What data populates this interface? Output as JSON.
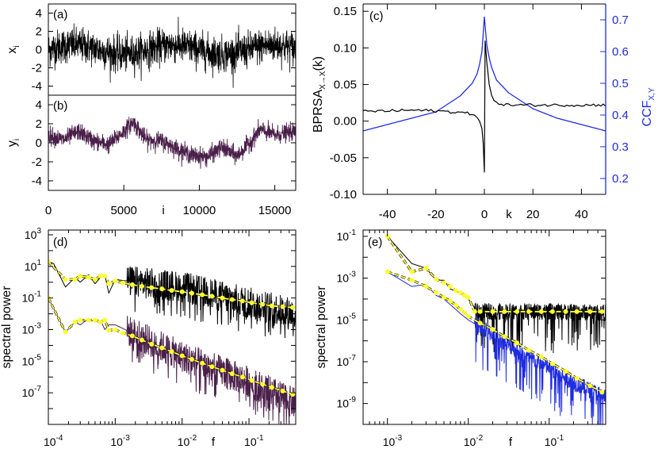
{
  "chart_data": [
    {
      "panel": "a",
      "type": "line",
      "panel_label": "(a)",
      "ylabel": "x",
      "ylabel_sub": "i",
      "xlim": [
        0,
        16384
      ],
      "ylim": [
        -5,
        5
      ],
      "yticks": [
        "4",
        "2",
        "0",
        "-2",
        "-4"
      ],
      "ytick_values": [
        4,
        2,
        0,
        -2,
        -4
      ],
      "series": [
        {
          "color": "#000000",
          "description_values": {
            "mean": 0.0,
            "std": 1.0,
            "min": -4.0,
            "max": 4.0
          }
        }
      ]
    },
    {
      "panel": "b",
      "type": "line",
      "panel_label": "(b)",
      "ylabel": "y",
      "ylabel_sub": "i",
      "xlabel": "i",
      "xlim": [
        0,
        16384
      ],
      "ylim": [
        -5,
        5
      ],
      "xticks": [
        "0",
        "5000",
        "10000",
        "15000"
      ],
      "xtick_values": [
        0,
        5000,
        10000,
        15000
      ],
      "yticks": [
        "4",
        "2",
        "0",
        "-2",
        "-4"
      ],
      "ytick_values": [
        4,
        2,
        0,
        -2,
        -4
      ],
      "series": [
        {
          "color": "#4a1f4a",
          "x": [
            0,
            1000,
            2000,
            3000,
            4000,
            5000,
            5600,
            6500,
            7500,
            8500,
            9500,
            10500,
            11500,
            12500,
            13500,
            14000,
            15000,
            16384
          ],
          "y": [
            0.8,
            0.3,
            1.2,
            0.2,
            -0.2,
            1.2,
            2.2,
            0.3,
            0.2,
            -0.6,
            -1.3,
            -1.5,
            -0.5,
            -1.4,
            0.3,
            1.4,
            0.8,
            1.2
          ]
        }
      ]
    },
    {
      "panel": "c",
      "type": "line",
      "panel_label": "(c)",
      "xlabel": "k",
      "ylabel_left": "BPRSA",
      "ylabel_left_sub": "X→X",
      "ylabel_left_suffix": "(k)",
      "ylabel_right": "CCF",
      "ylabel_right_sub": "X,Y",
      "xlim": [
        -50,
        50
      ],
      "ylim_left": [
        -0.1,
        0.16
      ],
      "ylim_right": [
        0.15,
        0.75
      ],
      "xticks": [
        "-40",
        "-20",
        "0",
        "20",
        "40"
      ],
      "xtick_values": [
        -40,
        -20,
        0,
        20,
        40
      ],
      "yticks_left": [
        "0.15",
        "0.10",
        "0.05",
        "0.00",
        "-0.05",
        "-0.10"
      ],
      "ytick_left_values": [
        0.15,
        0.1,
        0.05,
        0.0,
        -0.05,
        -0.1
      ],
      "yticks_right": [
        "0.7",
        "0.6",
        "0.5",
        "0.4",
        "0.3",
        "0.2"
      ],
      "ytick_right_values": [
        0.7,
        0.6,
        0.5,
        0.4,
        0.3,
        0.2
      ],
      "series": [
        {
          "axis": "left",
          "color": "#000000",
          "x": [
            -50,
            -40,
            -30,
            -20,
            -10,
            -6,
            -4,
            -3,
            -2,
            -1,
            -0.5,
            0,
            0.5,
            1,
            2,
            3,
            4,
            6,
            10,
            20,
            30,
            40,
            50
          ],
          "y": [
            0.013,
            0.014,
            0.015,
            0.014,
            0.012,
            0.01,
            0.008,
            0.005,
            0.0,
            -0.01,
            -0.03,
            -0.07,
            0.11,
            0.08,
            0.05,
            0.035,
            0.028,
            0.024,
            0.022,
            0.022,
            0.022,
            0.022,
            0.022
          ]
        },
        {
          "axis": "right",
          "color": "#1f2ce0",
          "x": [
            -50,
            -40,
            -30,
            -20,
            -10,
            -5,
            -3,
            -2,
            -1,
            0,
            1,
            2,
            3,
            5,
            10,
            20,
            30,
            40,
            50
          ],
          "y": [
            0.35,
            0.37,
            0.39,
            0.41,
            0.46,
            0.5,
            0.53,
            0.56,
            0.6,
            0.71,
            0.62,
            0.58,
            0.55,
            0.51,
            0.47,
            0.42,
            0.39,
            0.37,
            0.35
          ]
        }
      ]
    },
    {
      "panel": "d",
      "type": "line",
      "panel_label": "(d)",
      "xlabel": "f",
      "ylabel": "spectral power",
      "xscale": "log",
      "yscale": "log",
      "xlim": [
        0.0001,
        0.5
      ],
      "ylim": [
        1e-09,
        2000
      ],
      "xticks": [
        "10",
        "10",
        "10",
        "10"
      ],
      "xtick_exp": [
        "-4",
        "-3",
        "-2",
        "-1"
      ],
      "xtick_values": [
        0.0001,
        0.001,
        0.01,
        0.1
      ],
      "yticks": [
        "10",
        "10",
        "10",
        "10",
        "10",
        "10"
      ],
      "ytick_exp": [
        "3",
        "1",
        "-1",
        "-3",
        "-5",
        "-7"
      ],
      "ytick_values": [
        1000,
        10,
        0.1,
        0.001,
        1e-05,
        1e-07
      ],
      "series": [
        {
          "color": "#000000",
          "role": "noisy",
          "x": [
            0.0001,
            0.00012,
            0.00018,
            0.00025,
            0.0003,
            0.0004,
            0.0005,
            0.0006,
            0.0007,
            0.0008,
            0.001,
            0.002,
            0.01,
            0.1,
            0.5
          ],
          "y": [
            20,
            15,
            0.5,
            2,
            1,
            3,
            0.8,
            2,
            3,
            0.2,
            1.5,
            1,
            0.5,
            0.05,
            0.01
          ]
        },
        {
          "color": "#ffff33",
          "role": "binned",
          "x": [
            0.0001,
            0.00018,
            0.00025,
            0.0003,
            0.0004,
            0.0005,
            0.0006,
            0.0007,
            0.0008,
            0.001,
            0.0013,
            0.0018,
            0.0025,
            0.0035,
            0.005,
            0.007,
            0.01,
            0.014,
            0.02,
            0.028,
            0.04,
            0.056,
            0.08,
            0.11,
            0.16,
            0.22,
            0.32,
            0.45
          ],
          "y": [
            20,
            1.5,
            1.5,
            2.5,
            2,
            1.5,
            2.5,
            2.5,
            0.8,
            1.2,
            0.9,
            0.7,
            0.55,
            0.45,
            0.38,
            0.3,
            0.25,
            0.2,
            0.16,
            0.13,
            0.1,
            0.08,
            0.065,
            0.05,
            0.04,
            0.032,
            0.028,
            0.025
          ]
        },
        {
          "color": "#4a1f4a",
          "role": "noisy",
          "x": [
            0.0001,
            0.00018,
            0.00025,
            0.0003,
            0.0004,
            0.0005,
            0.0006,
            0.0007,
            0.0008,
            0.001,
            0.01,
            0.1,
            0.5
          ],
          "y": [
            0.1,
            0.0007,
            0.003,
            0.002,
            0.005,
            0.003,
            0.004,
            0.001,
            0.002,
            0.002,
            2e-05,
            5e-07,
            2e-08
          ]
        },
        {
          "color": "#ffff33",
          "role": "binned",
          "x": [
            0.0001,
            0.00018,
            0.00025,
            0.0003,
            0.0004,
            0.0005,
            0.0006,
            0.0007,
            0.0008,
            0.001,
            0.0013,
            0.0018,
            0.0025,
            0.0035,
            0.005,
            0.007,
            0.01,
            0.014,
            0.02,
            0.028,
            0.04,
            0.056,
            0.08,
            0.11,
            0.16,
            0.22,
            0.32,
            0.45
          ],
          "y": [
            0.1,
            0.0007,
            0.003,
            0.004,
            0.004,
            0.004,
            0.003,
            0.004,
            0.0009,
            0.001,
            0.0006,
            0.0004,
            0.00022,
            0.00012,
            7e-05,
            4e-05,
            2.2e-05,
            1.3e-05,
            7.5e-06,
            4.5e-06,
            2.7e-06,
            1.6e-06,
            1e-06,
            6e-07,
            3.5e-07,
            2.2e-07,
            1.3e-07,
            8e-08
          ]
        }
      ]
    },
    {
      "panel": "e",
      "type": "line",
      "panel_label": "(e)",
      "xlabel": "f",
      "ylabel": "spectral power",
      "xscale": "log",
      "yscale": "log",
      "xlim": [
        0.0005,
        0.5
      ],
      "ylim": [
        1e-10,
        0.2
      ],
      "xticks": [
        "10",
        "10",
        "10"
      ],
      "xtick_exp": [
        "-3",
        "-2",
        "-1"
      ],
      "xtick_values": [
        0.001,
        0.01,
        0.1
      ],
      "yticks": [
        "10",
        "10",
        "10",
        "10",
        "10"
      ],
      "ytick_exp": [
        "-1",
        "-3",
        "-5",
        "-7",
        "-9"
      ],
      "ytick_values": [
        0.1,
        0.001,
        1e-05,
        1e-07,
        1e-09
      ],
      "series": [
        {
          "color": "#000000",
          "role": "noisy",
          "x": [
            0.001,
            0.002,
            0.003,
            0.004,
            0.005,
            0.006,
            0.008,
            0.01,
            0.013,
            0.02,
            0.05,
            0.1,
            0.5
          ],
          "y": [
            0.1,
            0.005,
            0.003,
            0.0008,
            0.0008,
            0.0003,
            0.0002,
            0.0001,
            2.5e-05,
            2.5e-05,
            2.5e-05,
            2.5e-05,
            2.2e-05
          ]
        },
        {
          "color": "#1f2ce0",
          "role": "noisy",
          "x": [
            0.001,
            0.002,
            0.003,
            0.004,
            0.005,
            0.008,
            0.01,
            0.02,
            0.05,
            0.1,
            0.2,
            0.5
          ],
          "y": [
            0.002,
            0.0004,
            0.0005,
            0.00015,
            0.0001,
            2e-05,
            1e-05,
            2e-06,
            2e-07,
            5e-08,
            1e-08,
            2e-09
          ]
        },
        {
          "color": "#ffff33",
          "role": "binned",
          "x": [
            0.001,
            0.002,
            0.003,
            0.004,
            0.005,
            0.006,
            0.007,
            0.008,
            0.009,
            0.01,
            0.012,
            0.014,
            0.02,
            0.028,
            0.04,
            0.056,
            0.08,
            0.11,
            0.16,
            0.22,
            0.32,
            0.45
          ],
          "y": [
            0.1,
            0.002,
            0.003,
            0.0009,
            0.0006,
            0.0004,
            0.00025,
            0.0002,
            0.00015,
            0.00012,
            2.5e-05,
            2.5e-05,
            2.5e-05,
            2.5e-05,
            2.5e-05,
            2.5e-05,
            2.5e-05,
            2.5e-05,
            2.5e-05,
            2.5e-05,
            2.5e-05,
            2.5e-05
          ]
        },
        {
          "color": "#ffff33",
          "role": "binned",
          "x": [
            0.001,
            0.002,
            0.003,
            0.004,
            0.005,
            0.006,
            0.007,
            0.008,
            0.009,
            0.01,
            0.014,
            0.02,
            0.028,
            0.04,
            0.056,
            0.08,
            0.11,
            0.16,
            0.22,
            0.32,
            0.45
          ],
          "y": [
            0.002,
            0.0008,
            0.0004,
            0.0002,
            0.00012,
            8e-05,
            5e-05,
            3.2e-05,
            2.2e-05,
            1.5e-05,
            7e-06,
            3.5e-06,
            1.6e-06,
            8e-07,
            3.5e-07,
            1.7e-07,
            8e-08,
            3.5e-08,
            1.6e-08,
            7e-09,
            3.5e-09
          ]
        }
      ]
    }
  ]
}
